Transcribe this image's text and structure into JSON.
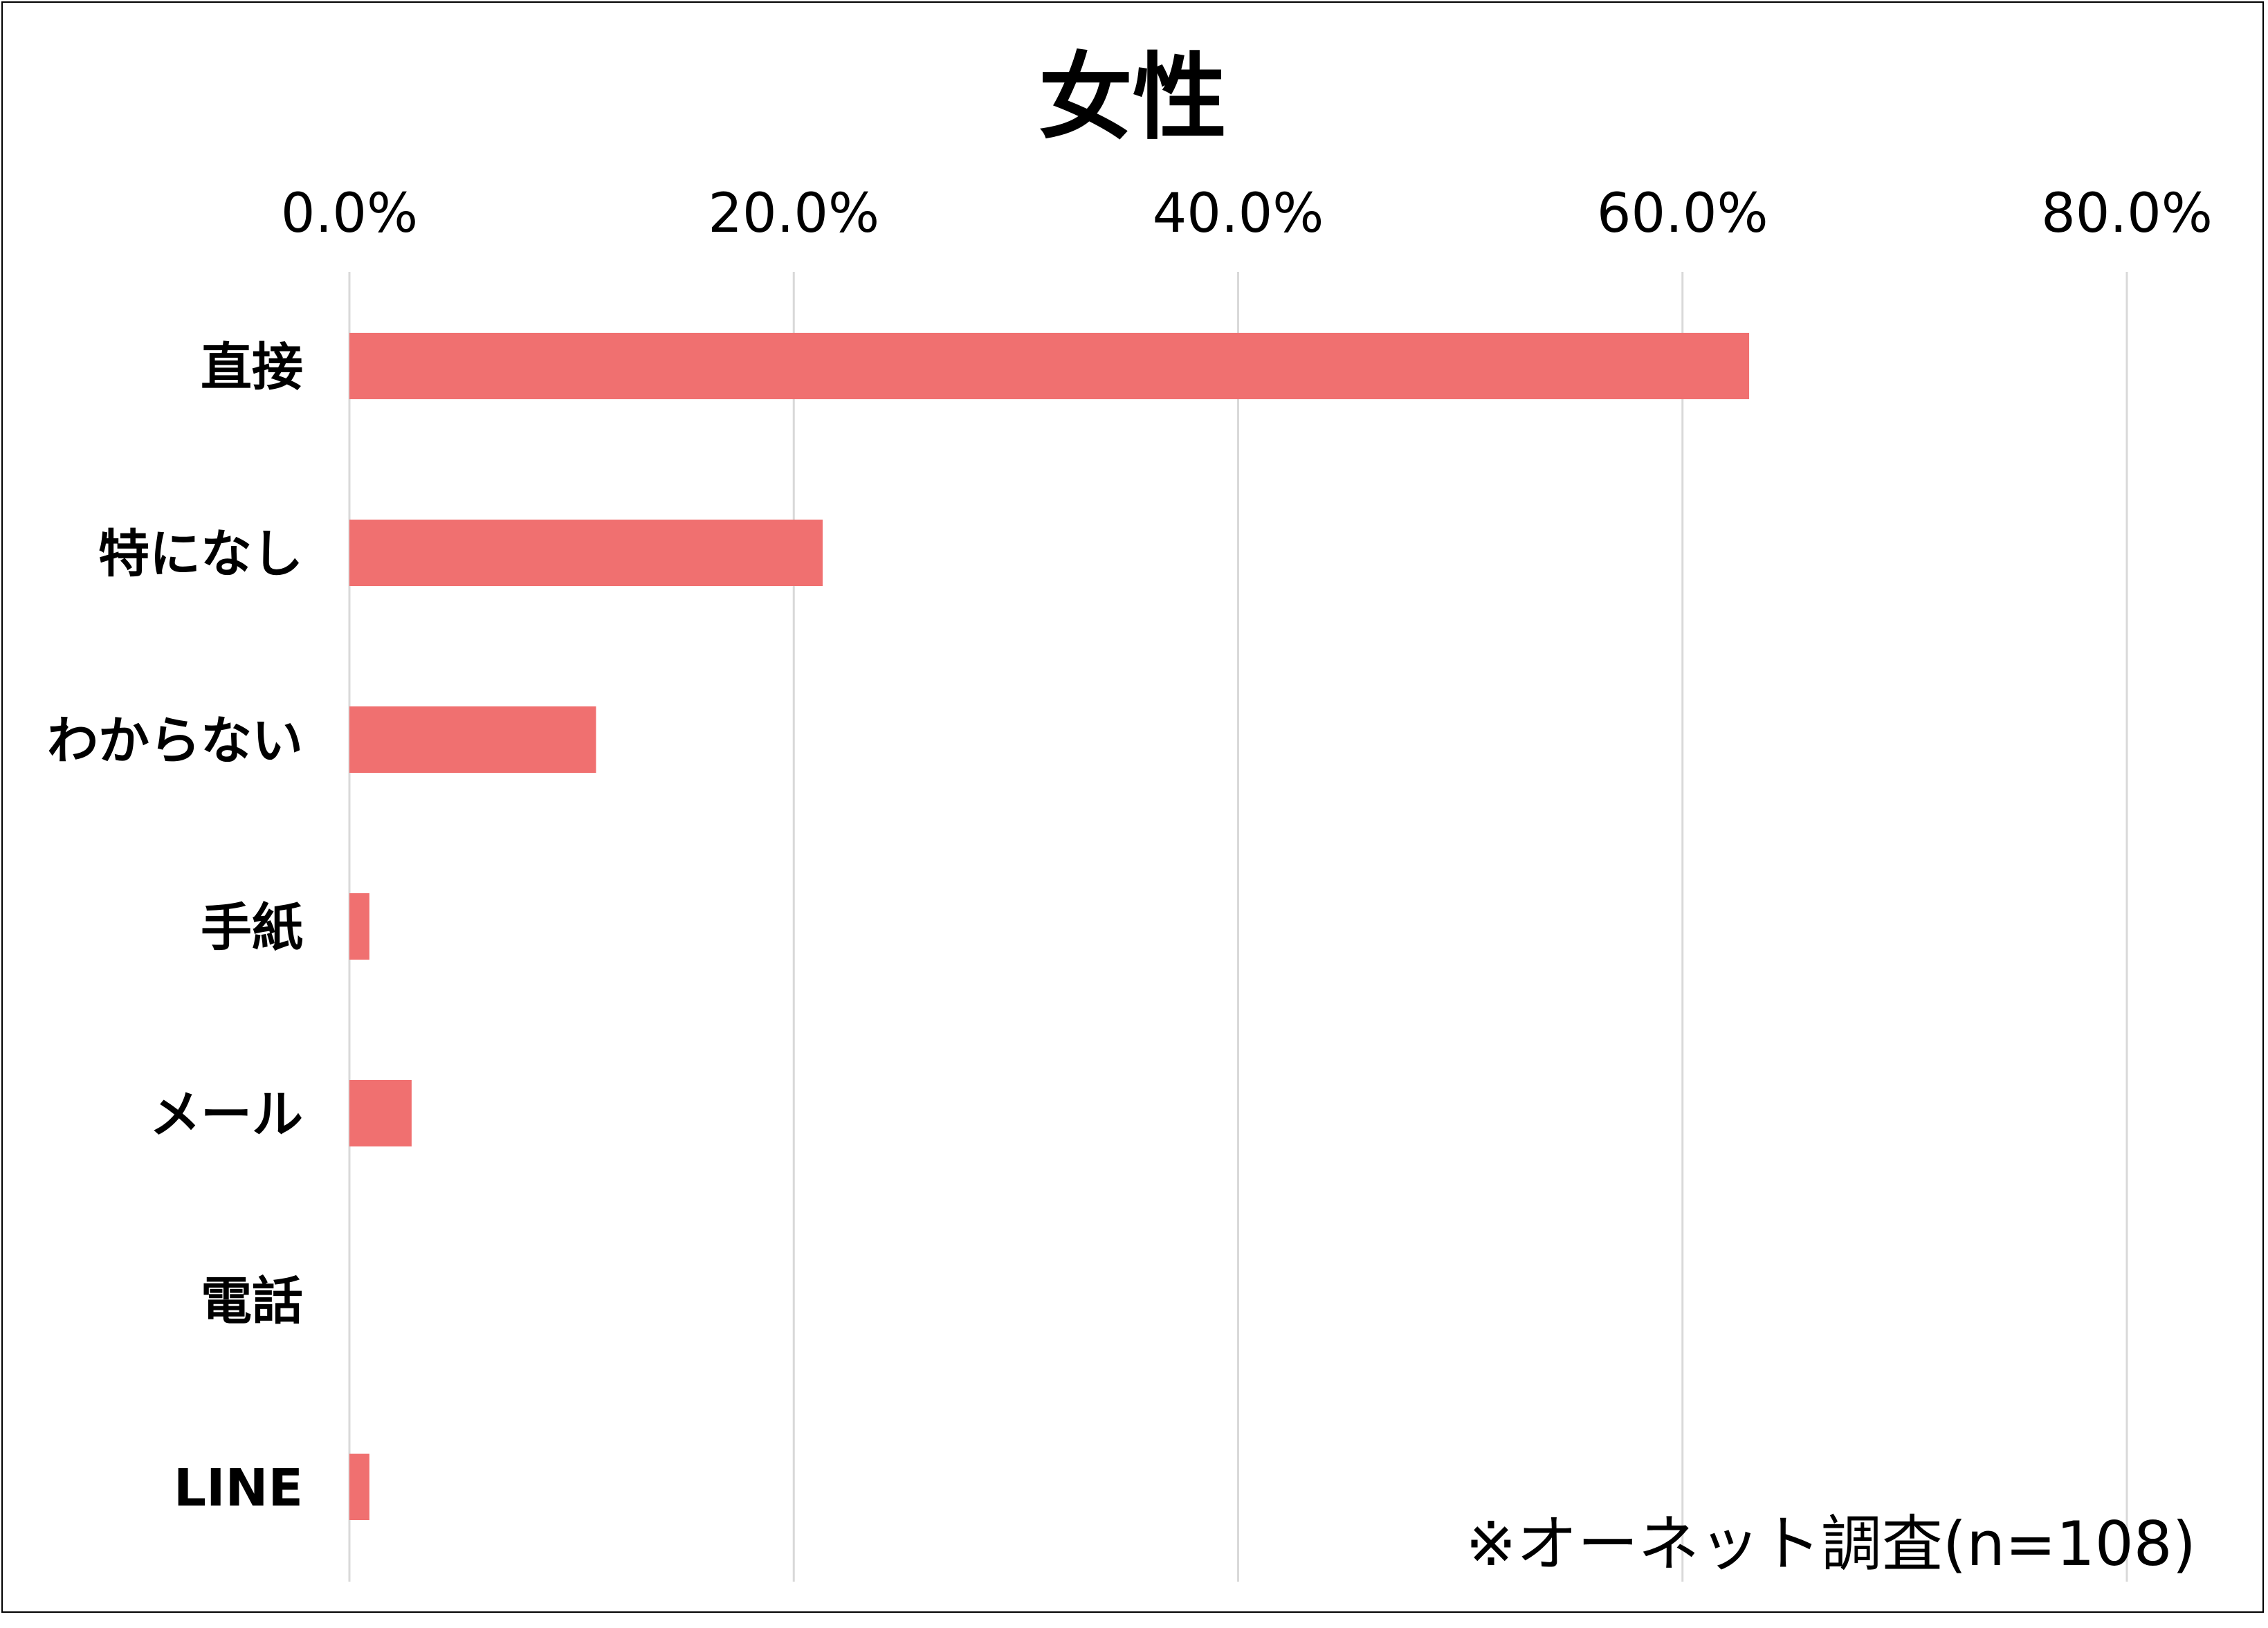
{
  "chart_data": {
    "type": "bar",
    "orientation": "horizontal",
    "title": "女性",
    "categories": [
      "直接",
      "特になし",
      "わからない",
      "手紙",
      "メール",
      "電話",
      "LINE"
    ],
    "values": [
      63.0,
      21.3,
      11.1,
      0.9,
      2.8,
      0.0,
      0.9
    ],
    "xlim": [
      0,
      80
    ],
    "x_ticks": [
      0,
      20,
      40,
      60,
      80
    ],
    "x_tick_labels": [
      "0.0%",
      "20.0%",
      "40.0%",
      "60.0%",
      "80.0%"
    ],
    "x_axis_position": "top",
    "grid": true,
    "legend": "none",
    "bar_color": "#F07070",
    "gridline_color": "#D9D9D9",
    "annotation": "※オーネット調査(n=108)"
  }
}
